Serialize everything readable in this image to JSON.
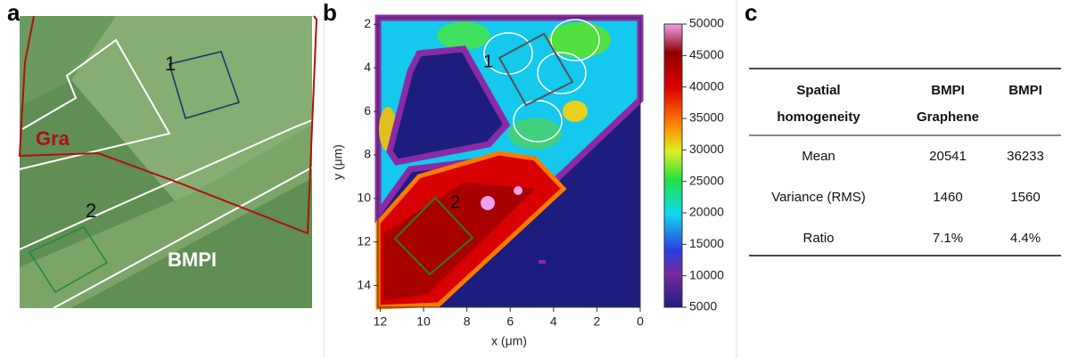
{
  "panel_a": {
    "label": "a",
    "region_labels": [
      "Gra",
      "BMPI"
    ],
    "box_labels": [
      "1",
      "2"
    ]
  },
  "panel_b": {
    "label": "b",
    "type": "heatmap",
    "xlabel": "x (μm)",
    "ylabel": "y (μm)",
    "xlim": [
      12.1,
      0
    ],
    "ylim": [
      1.7,
      15
    ],
    "xticks": [
      12,
      10,
      8,
      6,
      4,
      2,
      0
    ],
    "yticks": [
      2,
      4,
      6,
      8,
      10,
      12,
      14
    ],
    "box_labels": [
      "1",
      "2"
    ],
    "colorbar": {
      "clim": [
        5000,
        50000
      ],
      "ticks": [
        5000,
        10000,
        15000,
        20000,
        25000,
        30000,
        35000,
        40000,
        45000,
        50000
      ]
    }
  },
  "panel_c": {
    "label": "c",
    "header": [
      [
        "Spatial",
        "homogeneity"
      ],
      [
        "BMPI",
        "Graphene"
      ],
      [
        "BMPI"
      ]
    ],
    "rows": [
      [
        "Mean",
        20541,
        36233
      ],
      [
        "Variance (RMS)",
        1460,
        1560
      ],
      [
        "Ratio",
        "7.1%",
        "4.4%"
      ]
    ]
  }
}
